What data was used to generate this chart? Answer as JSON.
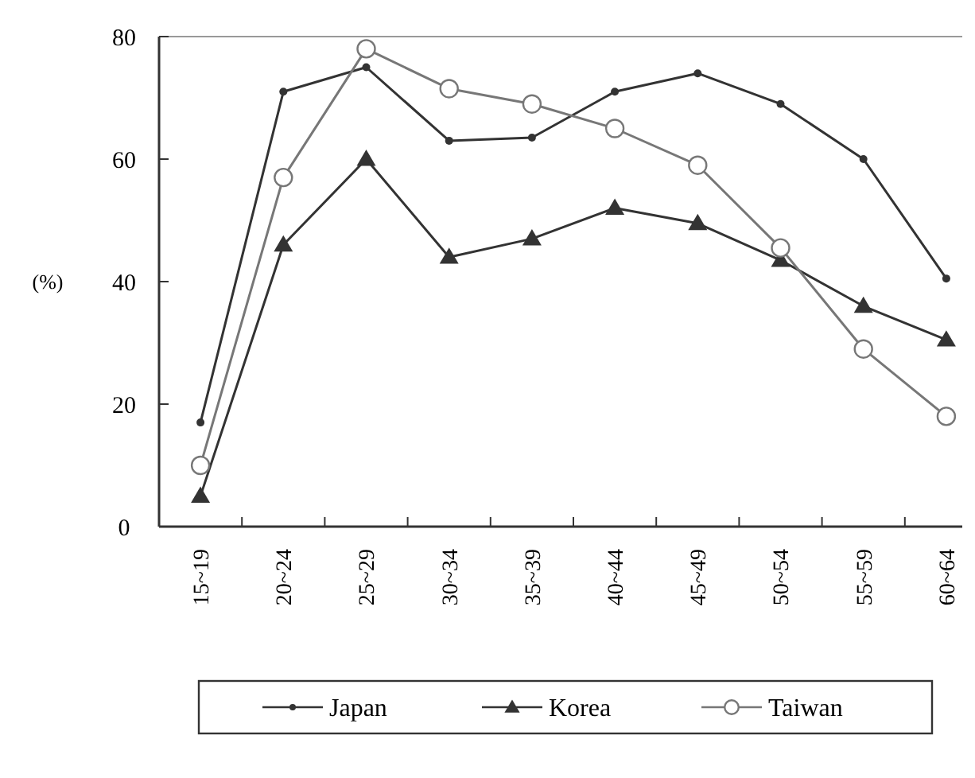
{
  "chart_data": {
    "type": "line",
    "ylabel": "(%)",
    "categories": [
      "15~19",
      "20~24",
      "25~29",
      "30~34",
      "35~39",
      "40~44",
      "45~49",
      "50~54",
      "55~59",
      "60~64"
    ],
    "ylim": [
      0,
      80
    ],
    "yticks": [
      0,
      20,
      40,
      60,
      80
    ],
    "grid": false,
    "legend": "bottom",
    "series": [
      {
        "name": "Japan",
        "color": "#333333",
        "marker": "circle",
        "values": [
          17,
          71,
          75,
          63,
          63.5,
          71,
          74,
          69,
          60,
          40.5
        ]
      },
      {
        "name": "Korea",
        "color": "#333333",
        "marker": "triangle",
        "values": [
          5,
          46,
          60,
          44,
          47,
          52,
          49.5,
          43.5,
          36,
          30.5
        ]
      },
      {
        "name": "Taiwan",
        "color": "#777777",
        "marker": "open-circle",
        "values": [
          10,
          57,
          78,
          71.5,
          69,
          65,
          59,
          45.5,
          29,
          18
        ]
      }
    ]
  }
}
